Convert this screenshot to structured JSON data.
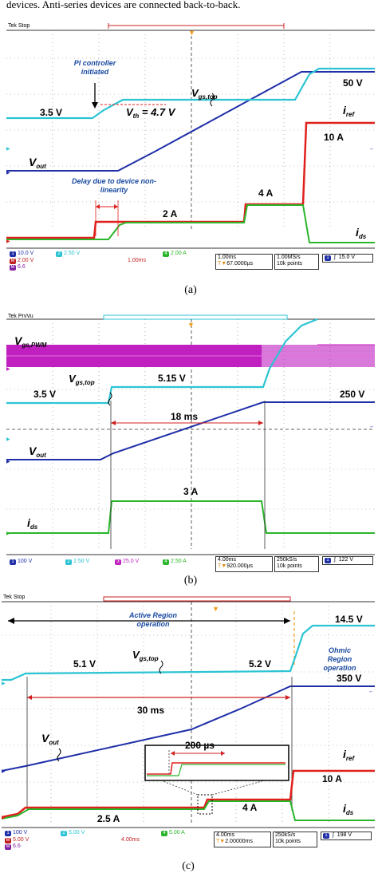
{
  "caption_top": "devices. Anti-series devices are connected back-to-back.",
  "colors": {
    "cyan": "#2cc4d4",
    "blue": "#1f2fa8",
    "red": "#e0201c",
    "green": "#2ab52a",
    "magenta": "#c020c0",
    "orange": "#f0a020"
  },
  "panel_a": {
    "label": "(a)",
    "tek": "Tek Stop",
    "labels": {
      "pi_note": "PI controller initiated",
      "vgs_top_main": "V",
      "vgs_top_sub": "gs,top",
      "vth_main": "V",
      "vth_sub": "th",
      "vth_value": "= 4.7 V",
      "v35": "3.5 V",
      "v50": "50 V",
      "iref_main": "i",
      "iref_sub": "ref",
      "i10": "10 A",
      "vout_main": "V",
      "vout_sub": "out",
      "delay_note": "Delay due to device non-linearity",
      "i4": "4 A",
      "i2": "2 A",
      "ids_main": "i",
      "ids_sub": "ds"
    },
    "status": {
      "ch1": "10.0 V",
      "ch2": "2.50 V",
      "ch4": "2.00 A",
      "math1": "2.00 V",
      "math1_time": "1.00ms",
      "math2": "6.6",
      "timebase": "1.00ms",
      "trig_pos": "67.0000µs",
      "rate": "1.00MS/s",
      "points": "10k points",
      "trig_ch": "1",
      "trig_level": "15.0 V"
    }
  },
  "panel_b": {
    "label": "(b)",
    "tek": "Tek PrvVu",
    "labels": {
      "vgs_pwm_main": "V",
      "vgs_pwm_sub": "gs,PWM",
      "vgs_top_main": "V",
      "vgs_top_sub": "gs,top",
      "v515": "5.15 V",
      "v35": "3.5 V",
      "v250": "250 V",
      "t18": "18 ms",
      "vout_main": "V",
      "vout_sub": "out",
      "i3": "3 A",
      "ids_main": "i",
      "ids_sub": "ds"
    },
    "status": {
      "ch1": "100 V",
      "ch2": "2.50 V",
      "ch3": "25.0 V",
      "ch4": "2.50 A",
      "timebase": "4.00ms",
      "trig_pos": "920.000µs",
      "rate": "250kS/s",
      "points": "10k points",
      "trig_ch": "1",
      "trig_level": "122 V"
    }
  },
  "panel_c": {
    "label": "(c)",
    "tek": "Tek Stop",
    "labels": {
      "active_note": "Active Region operation",
      "ohmic_note": "Ohmic Region operation",
      "v145": "14.5 V",
      "v51": "5.1 V",
      "vgs_top_main": "V",
      "vgs_top_sub": "gs,top",
      "v52": "5.2 V",
      "v350": "350 V",
      "t30": "30 ms",
      "vout_main": "V",
      "vout_sub": "out",
      "t200": "200 µs",
      "iref_main": "i",
      "iref_sub": "ref",
      "i10": "10 A",
      "i25": "2.5 A",
      "i4": "4 A",
      "ids_main": "i",
      "ids_sub": "ds"
    },
    "status": {
      "ch1": "100 V",
      "ch2": "5.00 V",
      "ch4": "5.00 A",
      "math1": "5.00 V",
      "math1_time": "4.00ms",
      "math2": "6.6",
      "timebase": "4.00ms",
      "trig_pos": "2.00000ms",
      "rate": "250kS/s",
      "points": "10k points",
      "trig_ch": "1",
      "trig_level": "198 V"
    }
  }
}
